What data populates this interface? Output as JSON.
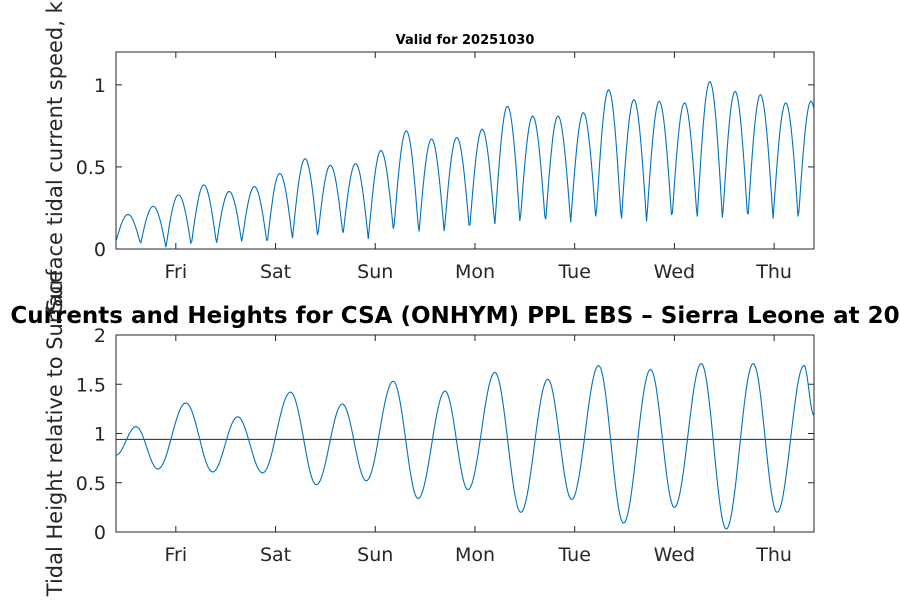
{
  "chart_data": [
    {
      "type": "line",
      "title": "Valid for 20251030",
      "ylabel": "Surface tidal current speed, kn",
      "xlabel": "",
      "xlim": [
        0,
        7
      ],
      "ylim": [
        0,
        1.2
      ],
      "yticks": [
        0,
        0.5,
        1
      ],
      "ytick_labels": [
        "0",
        "0.5",
        "1"
      ],
      "xticks": [
        0.6,
        1.6,
        2.6,
        3.6,
        4.6,
        5.6,
        6.6
      ],
      "xtick_labels": [
        "Fri",
        "Sat",
        "Sun",
        "Mon",
        "Tue",
        "Wed",
        "Thu"
      ],
      "color": "#0072bd",
      "peaks": [
        0.21,
        0.26,
        0.33,
        0.39,
        0.35,
        0.38,
        0.46,
        0.55,
        0.51,
        0.52,
        0.6,
        0.72,
        0.67,
        0.68,
        0.73,
        0.87,
        0.81,
        0.81,
        0.83,
        0.97,
        0.91,
        0.9,
        0.89,
        1.02,
        0.96,
        0.94,
        0.89,
        0.9
      ],
      "troughs": [
        0.03,
        0.01,
        0.02,
        0.03,
        0.04,
        0.03,
        0.06,
        0.07,
        0.08,
        0.06,
        0.1,
        0.09,
        0.1,
        0.11,
        0.14,
        0.15,
        0.15,
        0.16,
        0.17,
        0.16,
        0.16,
        0.17,
        0.18,
        0.17,
        0.17,
        0.18,
        0.17
      ]
    },
    {
      "type": "line",
      "title": "Currents and Heights for CSA (ONHYM) PPL EBS  – Sierra Leone at 20",
      "ylabel": "Tidal Height relative to Surface",
      "xlabel": "",
      "xlim": [
        0,
        7
      ],
      "ylim": [
        0,
        2
      ],
      "yticks": [
        0,
        0.5,
        1,
        1.5,
        2
      ],
      "ytick_labels": [
        "0",
        "0.5",
        "1",
        "1.5",
        "2"
      ],
      "xticks": [
        0.6,
        1.6,
        2.6,
        3.6,
        4.6,
        5.6,
        6.6
      ],
      "xtick_labels": [
        "Fri",
        "Sat",
        "Sun",
        "Mon",
        "Tue",
        "Wed",
        "Thu"
      ],
      "color": "#0072bd",
      "reference_line": 0.94,
      "extrema": [
        [
          0,
          0.78
        ],
        [
          0.2,
          1.07
        ],
        [
          0.42,
          0.64
        ],
        [
          0.7,
          1.31
        ],
        [
          0.97,
          0.61
        ],
        [
          1.22,
          1.17
        ],
        [
          1.47,
          0.6
        ],
        [
          1.75,
          1.42
        ],
        [
          2.01,
          0.48
        ],
        [
          2.27,
          1.3
        ],
        [
          2.51,
          0.52
        ],
        [
          2.78,
          1.53
        ],
        [
          3.03,
          0.34
        ],
        [
          3.3,
          1.43
        ],
        [
          3.53,
          0.43
        ],
        [
          3.8,
          1.62
        ],
        [
          4.06,
          0.2
        ],
        [
          4.33,
          1.55
        ],
        [
          4.57,
          0.33
        ],
        [
          4.84,
          1.69
        ],
        [
          5.09,
          0.09
        ],
        [
          5.36,
          1.65
        ],
        [
          5.6,
          0.25
        ],
        [
          5.87,
          1.71
        ],
        [
          6.12,
          0.03
        ],
        [
          6.39,
          1.71
        ],
        [
          6.63,
          0.2
        ],
        [
          6.9,
          1.69
        ],
        [
          7.0,
          1.18
        ]
      ]
    }
  ]
}
